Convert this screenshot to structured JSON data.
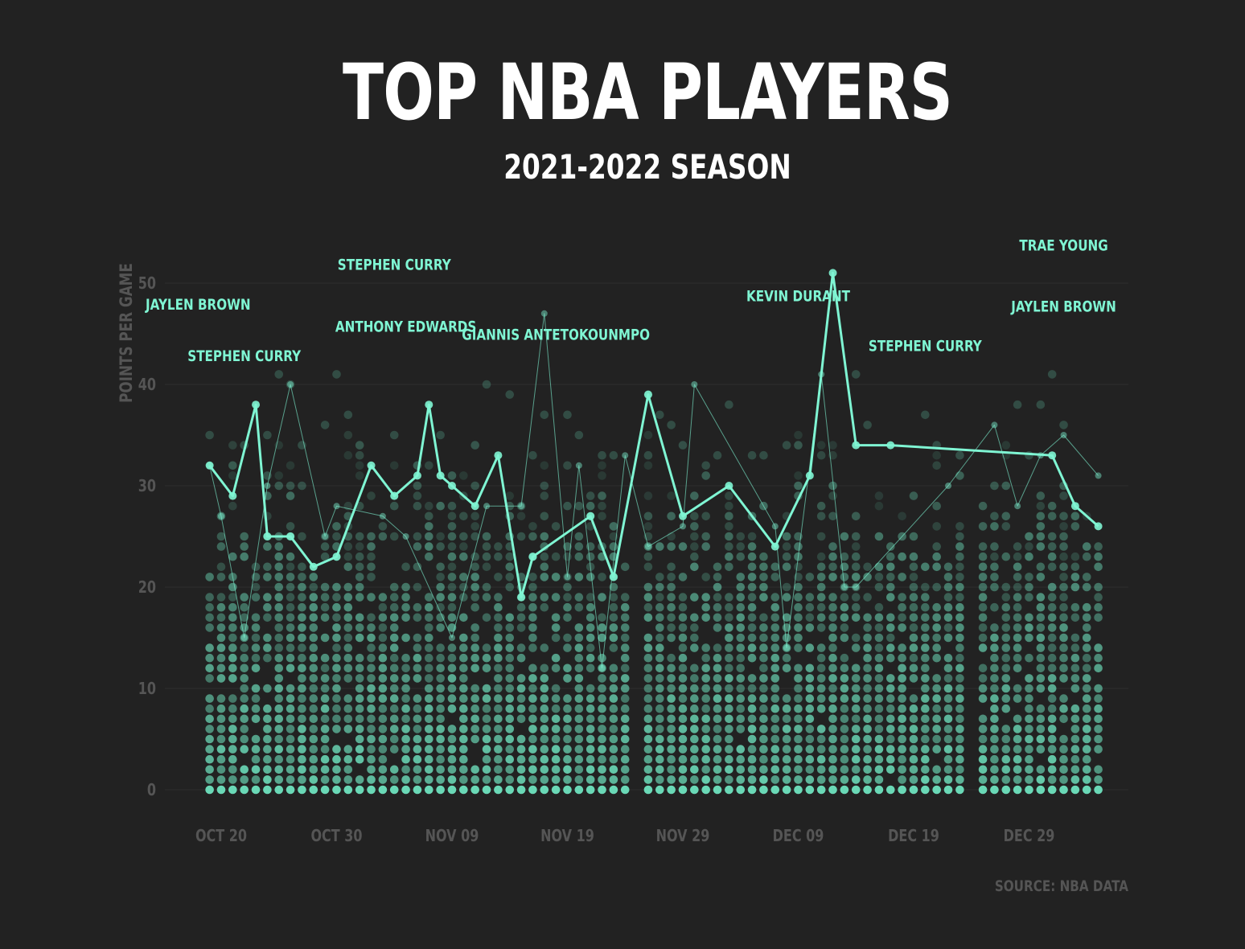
{
  "title": "TOP NBA PLAYERS",
  "subtitle": "2021-2022 SEASON",
  "source": "SOURCE: NBA DATA",
  "colors": {
    "background": "#222222",
    "accent": "#7ff5d3",
    "dots": "#6fe3bf",
    "axis_text": "#555555",
    "grid": "#2f2f2f"
  },
  "chart_data": {
    "type": "scatter",
    "ylabel": "POINTS PER GAME",
    "xlabel": "",
    "ylim": [
      0,
      56
    ],
    "y_ticks": [
      0,
      10,
      20,
      30,
      40,
      50
    ],
    "x_ticks": [
      {
        "label": "OCT 20",
        "date": "2021-10-20"
      },
      {
        "label": "OCT 30",
        "date": "2021-10-30"
      },
      {
        "label": "NOV 09",
        "date": "2021-11-09"
      },
      {
        "label": "NOV 19",
        "date": "2021-11-19"
      },
      {
        "label": "NOV 29",
        "date": "2021-11-29"
      },
      {
        "label": "DEC 09",
        "date": "2021-12-09"
      },
      {
        "label": "DEC 19",
        "date": "2021-12-19"
      },
      {
        "label": "DEC 29",
        "date": "2021-12-29"
      }
    ],
    "x_range": [
      "2021-10-18",
      "2022-01-04"
    ],
    "grid": true,
    "series": [
      {
        "style": "thick line",
        "points": [
          [
            "2021-10-19",
            32
          ],
          [
            "2021-10-21",
            29
          ],
          [
            "2021-10-23",
            38
          ],
          [
            "2021-10-24",
            25
          ],
          [
            "2021-10-26",
            25
          ],
          [
            "2021-10-28",
            22
          ],
          [
            "2021-10-30",
            23
          ],
          [
            "2021-11-02",
            32
          ],
          [
            "2021-11-04",
            29
          ],
          [
            "2021-11-06",
            31
          ],
          [
            "2021-11-07",
            38
          ],
          [
            "2021-11-08",
            31
          ],
          [
            "2021-11-09",
            30
          ],
          [
            "2021-11-11",
            28
          ],
          [
            "2021-11-13",
            33
          ],
          [
            "2021-11-15",
            19
          ],
          [
            "2021-11-16",
            23
          ],
          [
            "2021-11-21",
            27
          ],
          [
            "2021-11-23",
            21
          ],
          [
            "2021-11-26",
            39
          ],
          [
            "2021-11-29",
            27
          ],
          [
            "2021-12-03",
            30
          ],
          [
            "2021-12-07",
            24
          ],
          [
            "2021-12-10",
            31
          ],
          [
            "2021-12-12",
            51
          ],
          [
            "2021-12-14",
            34
          ],
          [
            "2021-12-17",
            34
          ],
          [
            "2021-12-31",
            33
          ],
          [
            "2022-01-02",
            28
          ],
          [
            "2022-01-04",
            26
          ]
        ]
      },
      {
        "style": "thin line",
        "points": [
          [
            "2021-10-19",
            32
          ],
          [
            "2021-10-20",
            27
          ],
          [
            "2021-10-22",
            15
          ],
          [
            "2021-10-24",
            30
          ],
          [
            "2021-10-26",
            40
          ],
          [
            "2021-10-29",
            25
          ],
          [
            "2021-10-30",
            28
          ],
          [
            "2021-11-03",
            27
          ],
          [
            "2021-11-05",
            25
          ],
          [
            "2021-11-09",
            15
          ],
          [
            "2021-11-12",
            28
          ],
          [
            "2021-11-15",
            28
          ],
          [
            "2021-11-17",
            47
          ],
          [
            "2021-11-19",
            21
          ],
          [
            "2021-11-20",
            32
          ],
          [
            "2021-11-22",
            12
          ],
          [
            "2021-11-24",
            33
          ],
          [
            "2021-11-26",
            24
          ],
          [
            "2021-11-29",
            26
          ],
          [
            "2021-11-30",
            40
          ],
          [
            "2021-12-07",
            26
          ],
          [
            "2021-12-08",
            14
          ],
          [
            "2021-12-11",
            41
          ],
          [
            "2021-12-13",
            20
          ],
          [
            "2021-12-14",
            20
          ],
          [
            "2021-12-22",
            30
          ],
          [
            "2021-12-26",
            36
          ],
          [
            "2021-12-28",
            28
          ],
          [
            "2021-12-30",
            33
          ],
          [
            "2022-01-01",
            35
          ],
          [
            "2022-01-04",
            31
          ]
        ]
      }
    ],
    "annotations": [
      {
        "text": "JAYLEN BROWN",
        "date": "2021-10-18",
        "y": 47.4
      },
      {
        "text": "STEPHEN CURRY",
        "date": "2021-10-22",
        "y": 42.3
      },
      {
        "text": "STEPHEN CURRY",
        "date": "2021-11-04",
        "y": 51.3
      },
      {
        "text": "ANTHONY EDWARDS",
        "date": "2021-11-05",
        "y": 45.2
      },
      {
        "text": "GIANNIS ANTETOKOUNMPO",
        "date": "2021-11-18",
        "y": 44.4
      },
      {
        "text": "KEVIN DURANT",
        "date": "2021-12-09",
        "y": 48.2
      },
      {
        "text": "STEPHEN CURRY",
        "date": "2021-12-20",
        "y": 43.3
      },
      {
        "text": "TRAE YOUNG",
        "date": "2022-01-01",
        "y": 53.2
      },
      {
        "text": "JAYLEN BROWN",
        "date": "2022-01-01",
        "y": 47.2
      }
    ],
    "background_dots": {
      "description": "all players' points per game, one faint dot per player per game day",
      "days_without_games": [
        "2021-11-25",
        "2021-12-24"
      ]
    }
  }
}
